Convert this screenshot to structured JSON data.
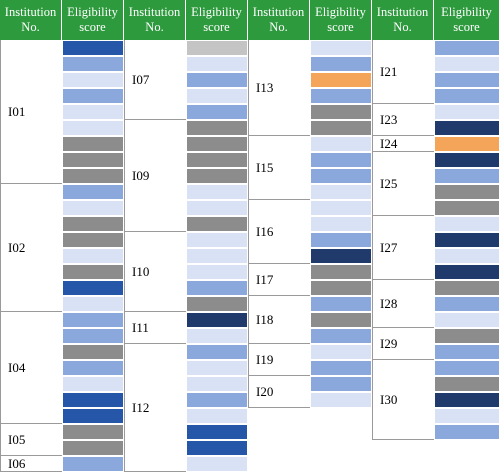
{
  "headers": {
    "institution": [
      "Institution",
      "No."
    ],
    "score": [
      "Eligibility",
      "score"
    ]
  },
  "colors": {
    "header_green": "#2e9a3e",
    "dark_blue": "#1f3a6b",
    "royal_blue": "#2556a8",
    "medium_blue": "#8aa8dc",
    "light_blue": "#d8e2f4",
    "gray": "#8c8c8c",
    "light_gray": "#c4c4c4",
    "orange": "#f4a55a"
  },
  "columns": [
    {
      "institutions": [
        {
          "label": "I01",
          "cells": [
            "royal_blue",
            "medium_blue",
            "light_blue",
            "medium_blue",
            "light_blue",
            "light_blue",
            "gray",
            "gray",
            "gray"
          ]
        },
        {
          "label": "I02",
          "cells": [
            "medium_blue",
            "light_blue",
            "gray",
            "gray",
            "light_blue",
            "gray",
            "royal_blue",
            "light_blue"
          ]
        },
        {
          "label": "I04",
          "cells": [
            "medium_blue",
            "medium_blue",
            "gray",
            "medium_blue",
            "light_blue",
            "royal_blue",
            "royal_blue"
          ]
        },
        {
          "label": "I05",
          "cells": [
            "gray",
            "gray"
          ]
        },
        {
          "label": "I06",
          "cells": [
            "medium_blue"
          ]
        }
      ]
    },
    {
      "institutions": [
        {
          "label": "I07",
          "cells": [
            "light_gray",
            "light_blue",
            "medium_blue",
            "light_blue",
            "medium_blue"
          ]
        },
        {
          "label": "I09",
          "cells": [
            "gray",
            "gray",
            "gray",
            "gray",
            "light_blue",
            "light_blue",
            "gray"
          ]
        },
        {
          "label": "I10",
          "cells": [
            "light_blue",
            "light_blue",
            "light_blue",
            "medium_blue",
            "gray"
          ]
        },
        {
          "label": "I11",
          "cells": [
            "dark_blue",
            "light_blue"
          ]
        },
        {
          "label": "I12",
          "cells": [
            "medium_blue",
            "light_blue",
            "light_blue",
            "medium_blue",
            "light_blue",
            "royal_blue",
            "royal_blue",
            "light_blue"
          ]
        }
      ]
    },
    {
      "institutions": [
        {
          "label": "I13",
          "cells": [
            "light_blue",
            "medium_blue",
            "orange",
            "medium_blue",
            "gray",
            "gray"
          ]
        },
        {
          "label": "I15",
          "cells": [
            "light_blue",
            "medium_blue",
            "medium_blue",
            "light_blue"
          ]
        },
        {
          "label": "I16",
          "cells": [
            "light_blue",
            "light_blue",
            "medium_blue",
            "dark_blue"
          ]
        },
        {
          "label": "I17",
          "cells": [
            "gray",
            "gray"
          ]
        },
        {
          "label": "I18",
          "cells": [
            "medium_blue",
            "gray",
            "medium_blue"
          ]
        },
        {
          "label": "I19",
          "cells": [
            "light_blue",
            "medium_blue"
          ]
        },
        {
          "label": "I20",
          "cells": [
            "medium_blue",
            "light_blue"
          ]
        }
      ]
    },
    {
      "institutions": [
        {
          "label": "I21",
          "cells": [
            "medium_blue",
            "light_blue",
            "medium_blue",
            "medium_blue"
          ]
        },
        {
          "label": "I23",
          "cells": [
            "light_blue",
            "dark_blue"
          ]
        },
        {
          "label": "I24",
          "cells": [
            "orange"
          ]
        },
        {
          "label": "I25",
          "cells": [
            "dark_blue",
            "medium_blue",
            "gray",
            "gray"
          ]
        },
        {
          "label": "I27",
          "cells": [
            "light_blue",
            "dark_blue",
            "light_blue",
            "dark_blue"
          ]
        },
        {
          "label": "I28",
          "cells": [
            "gray",
            "medium_blue",
            "light_blue"
          ]
        },
        {
          "label": "I29",
          "cells": [
            "gray",
            "medium_blue"
          ]
        },
        {
          "label": "I30",
          "cells": [
            "medium_blue",
            "gray",
            "dark_blue",
            "light_blue",
            "medium_blue"
          ]
        }
      ]
    }
  ]
}
